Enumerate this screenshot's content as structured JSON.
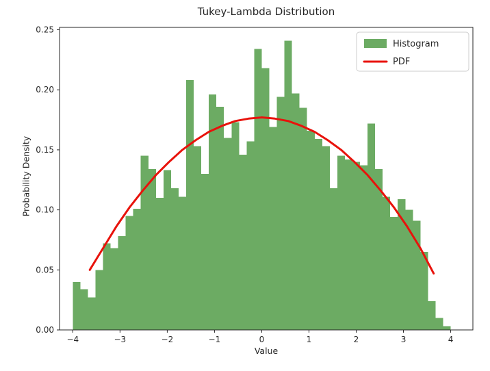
{
  "figure": {
    "title": "Tukey-Lambda Distribution",
    "xlabel": "Value",
    "ylabel": "Probability Density"
  },
  "legend": {
    "position": "upper right",
    "items": [
      {
        "label": "Histogram",
        "marker": "patch",
        "color": "#6cab63"
      },
      {
        "label": "PDF",
        "marker": "line",
        "color": "#e8120b"
      }
    ]
  },
  "colors": {
    "bar": "#6cab63",
    "pdf_line": "#e8120b",
    "axis": "#262626",
    "text": "#262626",
    "legend_border": "#cccccc",
    "background": "#ffffff"
  },
  "chart_data": {
    "type": "bar",
    "subtype": "histogram-with-pdf-overlay",
    "title": "Tukey-Lambda Distribution",
    "xlabel": "Value",
    "ylabel": "Probability Density",
    "xlim": [
      -4.28,
      4.47
    ],
    "ylim": [
      0,
      0.252
    ],
    "grid": false,
    "xticks": [
      -4,
      -3,
      -2,
      -1,
      0,
      1,
      2,
      3,
      4
    ],
    "yticks": [
      0.0,
      0.05,
      0.1,
      0.15,
      0.2,
      0.25
    ],
    "bins": {
      "start": -4.0,
      "width": 0.16,
      "densities": [
        0.04,
        0.034,
        0.027,
        0.05,
        0.072,
        0.068,
        0.078,
        0.095,
        0.101,
        0.145,
        0.134,
        0.11,
        0.133,
        0.118,
        0.111,
        0.208,
        0.153,
        0.13,
        0.196,
        0.186,
        0.16,
        0.173,
        0.146,
        0.157,
        0.234,
        0.218,
        0.169,
        0.194,
        0.241,
        0.197,
        0.185,
        0.166,
        0.159,
        0.153,
        0.118,
        0.145,
        0.142,
        0.14,
        0.137,
        0.172,
        0.134,
        0.111,
        0.094,
        0.109,
        0.1,
        0.091,
        0.065,
        0.024,
        0.01,
        0.003
      ]
    },
    "pdf_curve": {
      "x": [
        -3.64,
        -3.36,
        -3.08,
        -2.8,
        -2.52,
        -2.24,
        -1.96,
        -1.68,
        -1.4,
        -1.12,
        -0.84,
        -0.56,
        -0.28,
        0.0,
        0.28,
        0.56,
        0.84,
        1.12,
        1.4,
        1.68,
        1.96,
        2.24,
        2.52,
        2.8,
        3.08,
        3.36,
        3.64
      ],
      "y": [
        0.05,
        0.068,
        0.086,
        0.102,
        0.116,
        0.129,
        0.14,
        0.15,
        0.158,
        0.165,
        0.17,
        0.174,
        0.176,
        0.177,
        0.176,
        0.174,
        0.17,
        0.165,
        0.158,
        0.15,
        0.14,
        0.129,
        0.116,
        0.102,
        0.086,
        0.068,
        0.047
      ]
    },
    "series": [
      {
        "name": "Histogram",
        "type": "bar",
        "color": "#6cab63"
      },
      {
        "name": "PDF",
        "type": "line",
        "color": "#e8120b",
        "linewidth": 3
      }
    ]
  }
}
